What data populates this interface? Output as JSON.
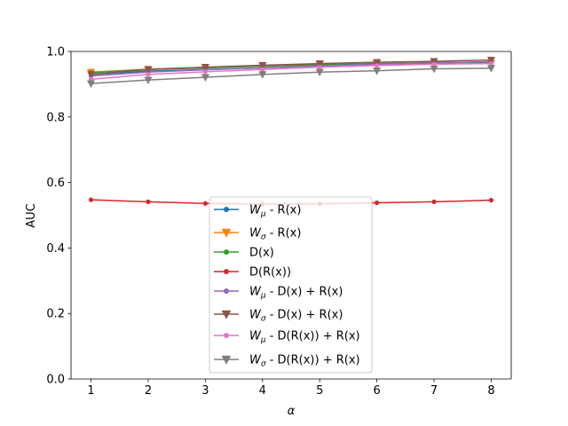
{
  "chart_data": {
    "type": "line",
    "xlabel": "α",
    "ylabel": "AUC",
    "xlim": [
      0.65,
      8.35
    ],
    "ylim": [
      0.0,
      1.0
    ],
    "xticks": [
      1,
      2,
      3,
      4,
      5,
      6,
      7,
      8
    ],
    "yticks": [
      0.0,
      0.2,
      0.4,
      0.6,
      0.8,
      1.0
    ],
    "xtick_labels": [
      "1",
      "2",
      "3",
      "4",
      "5",
      "6",
      "7",
      "8"
    ],
    "ytick_labels": [
      "0.0",
      "0.2",
      "0.4",
      "0.6",
      "0.8",
      "1.0"
    ],
    "grid": false,
    "legend_position": "lower-center",
    "x": [
      1,
      2,
      3,
      4,
      5,
      6,
      7,
      8
    ],
    "series": [
      {
        "name": "W_μ - R(x)",
        "legend_main": "W",
        "legend_sub": "μ",
        "legend_rest": " - R(x)",
        "color": "#1f77b4",
        "marker": "dot",
        "values": [
          0.93,
          0.94,
          0.945,
          0.95,
          0.957,
          0.962,
          0.966,
          0.968
        ]
      },
      {
        "name": "W_σ - R(x)",
        "legend_main": "W",
        "legend_sub": "σ",
        "legend_rest": " - R(x)",
        "color": "#ff7f0e",
        "marker": "triangle",
        "values": [
          0.937,
          0.946,
          0.952,
          0.957,
          0.96,
          0.963,
          0.963,
          0.964
        ]
      },
      {
        "name": "D(x)",
        "legend_main": "D(x)",
        "legend_sub": "",
        "legend_rest": "",
        "color": "#2ca02c",
        "marker": "dot",
        "values": [
          0.935,
          0.945,
          0.95,
          0.955,
          0.96,
          0.963,
          0.965,
          0.967
        ]
      },
      {
        "name": "D(R(x))",
        "legend_main": "D(R(x))",
        "legend_sub": "",
        "legend_rest": "",
        "color": "#d62728",
        "marker": "dot",
        "values": [
          0.547,
          0.541,
          0.536,
          0.534,
          0.535,
          0.538,
          0.541,
          0.546
        ]
      },
      {
        "name": "W_μ - D(x) + R(x)",
        "legend_main": "W",
        "legend_sub": "μ",
        "legend_rest": " - D(x) + R(x)",
        "color": "#9467bd",
        "marker": "dot",
        "values": [
          0.925,
          0.937,
          0.944,
          0.95,
          0.956,
          0.961,
          0.965,
          0.969
        ]
      },
      {
        "name": "W_σ - D(x) + R(x)",
        "legend_main": "W",
        "legend_sub": "σ",
        "legend_rest": " - D(x) + R(x)",
        "color": "#8c564b",
        "marker": "triangle",
        "values": [
          0.93,
          0.945,
          0.952,
          0.958,
          0.963,
          0.967,
          0.97,
          0.974
        ]
      },
      {
        "name": "W_μ - D(R(x)) + R(x)",
        "legend_main": "W",
        "legend_sub": "μ",
        "legend_rest": " - D(R(x)) + R(x)",
        "color": "#e377c2",
        "marker": "dot",
        "values": [
          0.915,
          0.93,
          0.938,
          0.945,
          0.952,
          0.957,
          0.961,
          0.963
        ]
      },
      {
        "name": "W_σ - D(R(x)) + R(x)",
        "legend_main": "W",
        "legend_sub": "σ",
        "legend_rest": " - D(R(x)) + R(x)",
        "color": "#7f7f7f",
        "marker": "triangle",
        "values": [
          0.902,
          0.913,
          0.921,
          0.93,
          0.937,
          0.941,
          0.947,
          0.949
        ]
      }
    ]
  }
}
